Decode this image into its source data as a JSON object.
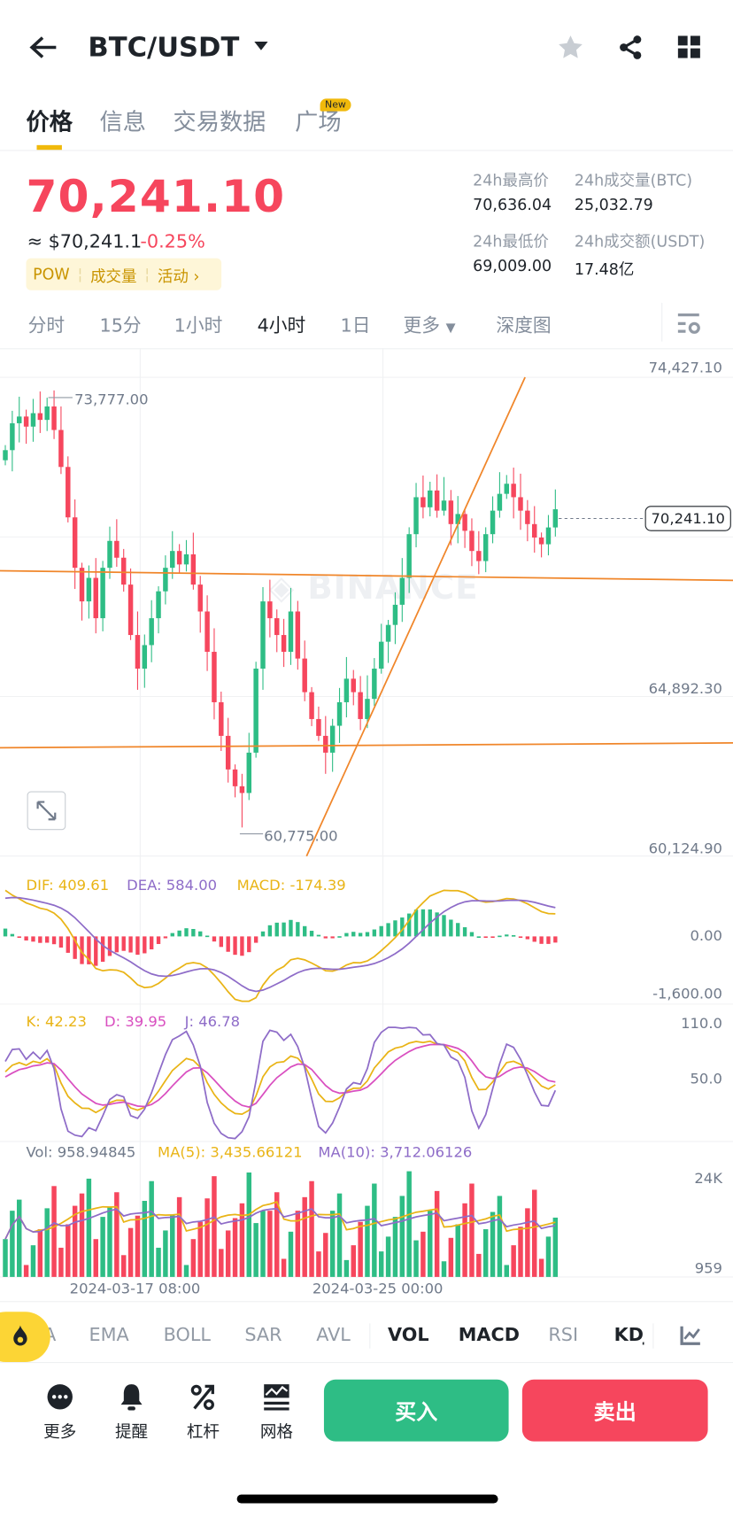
{
  "header": {
    "title": "BTC/USDT",
    "icons": [
      "back-arrow-icon",
      "caret-down-icon",
      "star-icon",
      "share-icon",
      "grid-icon"
    ]
  },
  "tabs": [
    {
      "label": "价格",
      "active": true
    },
    {
      "label": "信息"
    },
    {
      "label": "交易数据"
    },
    {
      "label": "广场",
      "badge": "New"
    }
  ],
  "price": {
    "last": "70,241.10",
    "usd": "≈ $70,241.1",
    "change": "-0.25%",
    "tags": [
      "POW",
      "成交量",
      "活动 ›"
    ]
  },
  "stats": {
    "high_label": "24h最高价",
    "high": "70,636.04",
    "vol_btc_label": "24h成交量(BTC)",
    "vol_btc": "25,032.79",
    "low_label": "24h最低价",
    "low": "69,009.00",
    "vol_usdt_label": "24h成交额(USDT)",
    "vol_usdt": "17.48亿"
  },
  "timeframes": [
    "分时",
    "15分",
    "1小时",
    "4小时",
    "1日",
    "更多",
    "深度图"
  ],
  "active_timeframe": "4小时",
  "chart": {
    "axis": {
      "top": "74,427.10",
      "mid": "64,892.30",
      "bottom": "60,124.90"
    },
    "max_label": "73,777.00",
    "min_label": "60,775.00",
    "current": "70,241.10",
    "watermark": "BINANCE",
    "macd": {
      "dif": "DIF: 409.61",
      "dea": "DEA: 584.00",
      "macd": "MACD: -174.39",
      "zero": "0.00",
      "low": "-1,600.00"
    },
    "kdj": {
      "k": "K: 42.23",
      "d": "D: 39.95",
      "j": "J: 46.78",
      "top": "110.0",
      "mid": "50.0"
    },
    "vol": {
      "vol": "Vol: 958.94845",
      "ma5": "MA(5): 3,435.66121",
      "ma10": "MA(10): 3,712.06126",
      "top": "24K",
      "bottom": "959"
    },
    "dates": [
      "2024-03-17 08:00",
      "2024-03-25 00:00"
    ],
    "colors": {
      "up": "#2EBD85",
      "down": "#F6465D",
      "trend": "#F0862A",
      "yellow": "#E9B416",
      "purple": "#8E6CC8",
      "pink": "#D94FC0"
    }
  },
  "kline": {
    "high_price": 73777,
    "low_price": 60775,
    "closes": [
      72000,
      72800,
      73000,
      72700,
      73100,
      72900,
      73300,
      72600,
      71500,
      70000,
      68500,
      67500,
      68200,
      67000,
      68500,
      69300,
      68800,
      68000,
      66500,
      65500,
      66200,
      67000,
      67800,
      68500,
      69000,
      68600,
      68900,
      68000,
      67200,
      66000,
      64500,
      63500,
      62500,
      62000,
      61800,
      63000,
      65500,
      67500,
      67000,
      66500,
      66000,
      67200,
      65800,
      64800,
      64000,
      63500,
      63000,
      63800,
      64500,
      65200,
      64800,
      64000,
      64600,
      65500,
      66300,
      66800,
      67400,
      68200,
      69500,
      70600,
      70300,
      70800,
      70200,
      70500,
      69800,
      70100,
      69600,
      69000,
      68700,
      69500,
      70200,
      70700,
      71000,
      70600,
      70200,
      69800,
      69400,
      69200,
      69700,
      70241.1
    ]
  },
  "indicators": [
    "A",
    "EMA",
    "BOLL",
    "SAR",
    "AVL",
    "VOL",
    "MACD",
    "RSI",
    "KDJ"
  ],
  "bottom": {
    "more": "更多",
    "alert": "提醒",
    "leverage": "杠杆",
    "grid": "网格",
    "buy": "买入",
    "sell": "卖出"
  }
}
